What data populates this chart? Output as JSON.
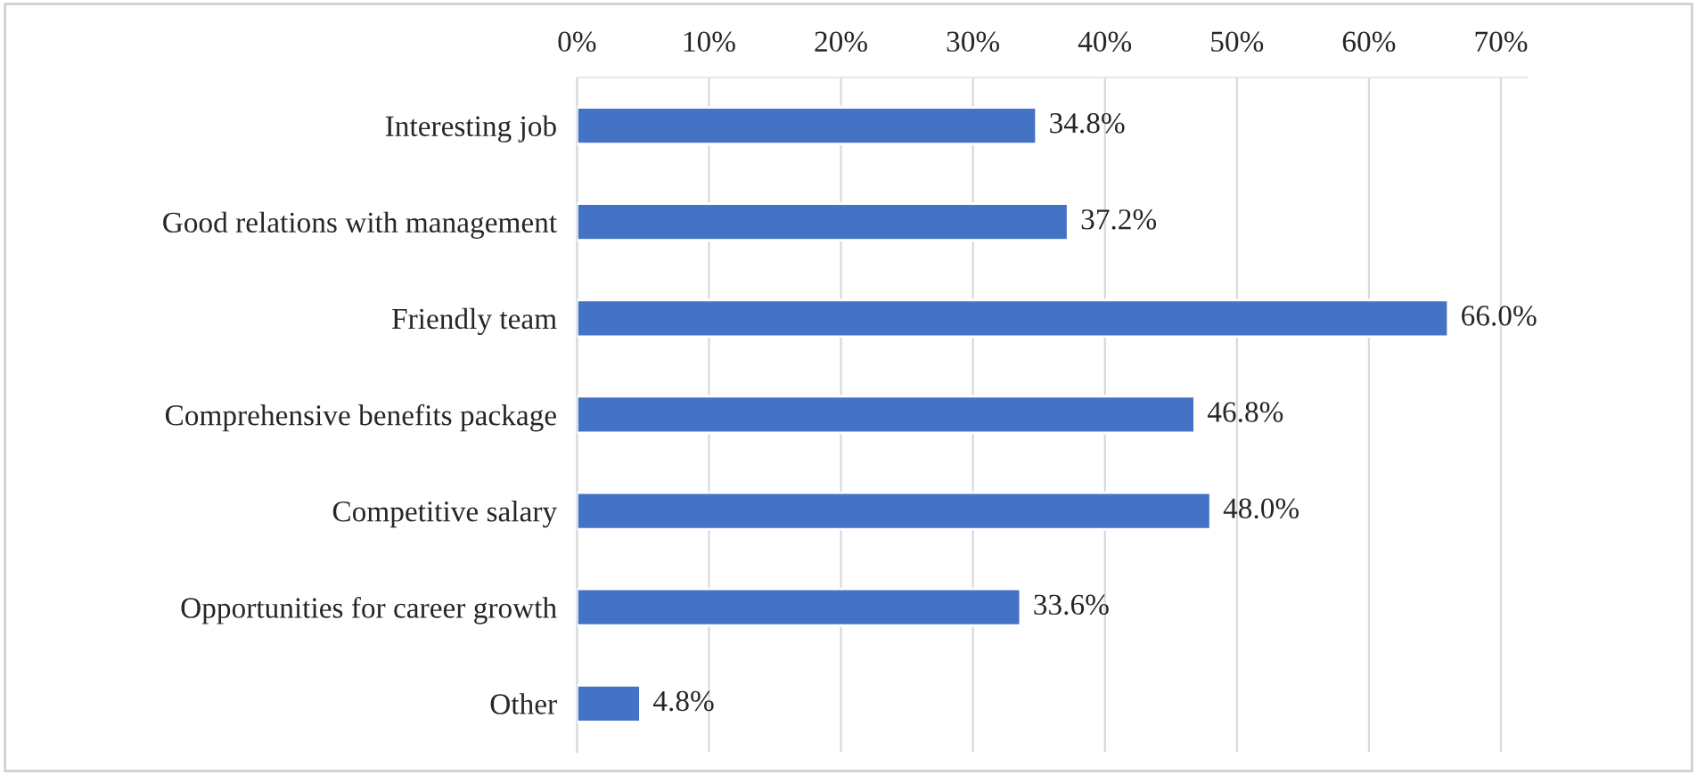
{
  "chart_data": {
    "type": "bar",
    "orientation": "horizontal",
    "categories": [
      "Interesting job",
      "Good relations with management",
      "Friendly team",
      "Comprehensive benefits package",
      "Competitive salary",
      "Opportunities for career growth",
      "Other"
    ],
    "values": [
      34.8,
      37.2,
      66.0,
      46.8,
      48.0,
      33.6,
      4.8
    ],
    "value_labels": [
      "34.8%",
      "37.2%",
      "66.0%",
      "46.8%",
      "48.0%",
      "33.6%",
      "4.8%"
    ],
    "color": "#4472c4",
    "xlim": [
      0,
      72
    ],
    "xticks": [
      {
        "value": 0,
        "label": "0%"
      },
      {
        "value": 10,
        "label": "10%"
      },
      {
        "value": 20,
        "label": "20%"
      },
      {
        "value": 30,
        "label": "30%"
      },
      {
        "value": 40,
        "label": "40%"
      },
      {
        "value": 50,
        "label": "50%"
      },
      {
        "value": 60,
        "label": "60%"
      },
      {
        "value": 70,
        "label": "70%"
      }
    ],
    "grid": "x",
    "legend": false
  }
}
